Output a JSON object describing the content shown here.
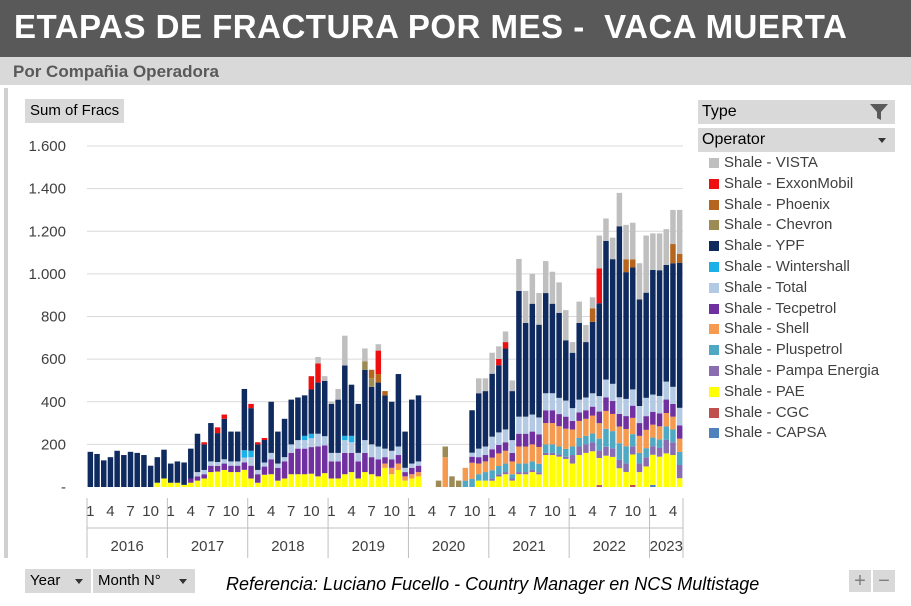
{
  "title": "ETAPAS DE FRACTURA POR MES -  VACA MUERTA",
  "subtitle": "Por Compañia Operadora",
  "value_button": "Sum of Fracs",
  "legend": {
    "filter_label": "Type",
    "header_label": "Operator",
    "filter_icon": "funnel-icon",
    "items": [
      {
        "name": "Shale - VISTA",
        "color": "#bfbfbf"
      },
      {
        "name": "Shale - ExxonMobil",
        "color": "#ee1010"
      },
      {
        "name": "Shale - Phoenix",
        "color": "#b5651d"
      },
      {
        "name": "Shale - Chevron",
        "color": "#9c8b55"
      },
      {
        "name": "Shale - YPF",
        "color": "#0f2a5f"
      },
      {
        "name": "Shale - Wintershall",
        "color": "#1bb0e8"
      },
      {
        "name": "Shale - Total",
        "color": "#b4c9e4"
      },
      {
        "name": "Shale - Tecpetrol",
        "color": "#7030a0"
      },
      {
        "name": "Shale - Shell",
        "color": "#f59a4f"
      },
      {
        "name": "Shale - Pluspetrol",
        "color": "#4fa9c4"
      },
      {
        "name": "Shale - Pampa Energia",
        "color": "#8a6cb1"
      },
      {
        "name": "Shale - PAE",
        "color": "#ffff00"
      },
      {
        "name": "Shale - CGC",
        "color": "#c0504d"
      },
      {
        "name": "Shale - CAPSA",
        "color": "#4f81bd"
      }
    ]
  },
  "axis_buttons": [
    {
      "label": "Year"
    },
    {
      "label": "Month N°"
    }
  ],
  "reference": "Referencia: Luciano Fucello - Country Manager en NCS Multistage",
  "buttons": {
    "plus": "+",
    "minus": "−"
  },
  "chart_data": {
    "type": "bar",
    "stacked": true,
    "ylim": [
      0,
      1600
    ],
    "yticks": [
      "-",
      "200",
      "400",
      "600",
      "800",
      "1.000",
      "1.200",
      "1.400",
      "1.600"
    ],
    "grid": true,
    "legend_position": "right",
    "years": [
      {
        "label": "2016",
        "months": 12
      },
      {
        "label": "2017",
        "months": 12
      },
      {
        "label": "2018",
        "months": 12
      },
      {
        "label": "2019",
        "months": 12
      },
      {
        "label": "2020",
        "months": 12
      },
      {
        "label": "2021",
        "months": 12
      },
      {
        "label": "2022",
        "months": 12
      },
      {
        "label": "2023",
        "months": 5
      }
    ],
    "month_ticks": [
      "1",
      "4",
      "7",
      "10"
    ],
    "series_order": [
      "Shale - CAPSA",
      "Shale - CGC",
      "Shale - PAE",
      "Shale - Pampa Energia",
      "Shale - Pluspetrol",
      "Shale - Shell",
      "Shale - Tecpetrol",
      "Shale - Total",
      "Shale - Wintershall",
      "Shale - YPF",
      "Shale - Chevron",
      "Shale - Phoenix",
      "Shale - ExxonMobil",
      "Shale - VISTA"
    ],
    "totals": [
      165,
      155,
      125,
      140,
      170,
      150,
      165,
      160,
      150,
      100,
      140,
      175,
      110,
      120,
      115,
      180,
      250,
      210,
      300,
      280,
      340,
      260,
      260,
      460,
      390,
      210,
      230,
      400,
      260,
      320,
      410,
      420,
      430,
      520,
      610,
      520,
      400,
      460,
      710,
      480,
      390,
      650,
      550,
      670,
      450,
      400,
      530,
      260,
      410,
      430,
      0,
      0,
      30,
      190,
      50,
      30,
      90,
      360,
      510,
      510,
      630,
      660,
      730,
      500,
      1070,
      920,
      1000,
      910,
      1060,
      1010,
      960,
      830,
      680,
      870,
      760,
      890,
      1180,
      1260,
      1170,
      1380,
      1230,
      1240,
      1050,
      1180,
      1190,
      1190,
      1210,
      1300,
      1300
    ],
    "shares": {
      "Shale - CAPSA": [
        0,
        0,
        0,
        0,
        0,
        0,
        0,
        0,
        0,
        0,
        0,
        0,
        0,
        0,
        0,
        0,
        0,
        0,
        0,
        0,
        0,
        0,
        0,
        0,
        0,
        0,
        0,
        0,
        0,
        0,
        0,
        0,
        0,
        0,
        0,
        0,
        0,
        0,
        0,
        0,
        0,
        0,
        0,
        0,
        0,
        0,
        0,
        0,
        0,
        0,
        0,
        0,
        0,
        0,
        0,
        0,
        0,
        0,
        0,
        0,
        0,
        0,
        0,
        0,
        0,
        0,
        0,
        0,
        0,
        0,
        0,
        0,
        0,
        0,
        0,
        0,
        0,
        0,
        0,
        0,
        0,
        0,
        0,
        0,
        10,
        0,
        0,
        0,
        0
      ],
      "Shale - CGC": [
        0,
        0,
        0,
        0,
        0,
        0,
        0,
        0,
        0,
        0,
        0,
        0,
        0,
        0,
        0,
        0,
        0,
        0,
        0,
        0,
        0,
        0,
        0,
        0,
        0,
        0,
        0,
        0,
        0,
        0,
        0,
        0,
        0,
        0,
        0,
        0,
        0,
        0,
        0,
        0,
        0,
        0,
        0,
        0,
        0,
        0,
        0,
        0,
        0,
        0,
        0,
        0,
        0,
        0,
        0,
        0,
        0,
        0,
        0,
        0,
        0,
        0,
        0,
        0,
        0,
        0,
        0,
        0,
        0,
        0,
        0,
        0,
        0,
        0,
        0,
        0,
        10,
        0,
        0,
        0,
        0,
        10,
        0,
        0,
        0,
        0,
        0,
        0,
        0
      ],
      "Shale - PAE": [
        0,
        0,
        0,
        0,
        0,
        0,
        0,
        0,
        0,
        0,
        20,
        40,
        20,
        20,
        10,
        20,
        30,
        40,
        70,
        80,
        80,
        70,
        70,
        70,
        40,
        20,
        60,
        60,
        30,
        40,
        60,
        60,
        60,
        60,
        50,
        60,
        40,
        40,
        60,
        70,
        40,
        70,
        60,
        50,
        90,
        60,
        80,
        30,
        40,
        50,
        0,
        0,
        0,
        0,
        0,
        0,
        0,
        0,
        30,
        30,
        30,
        50,
        60,
        30,
        60,
        60,
        70,
        60,
        150,
        150,
        150,
        140,
        110,
        150,
        160,
        160,
        140,
        140,
        140,
        90,
        70,
        150,
        70,
        90,
        140,
        140,
        150,
        150,
        40
      ],
      "Shale - Pampa Energia": [
        0,
        0,
        0,
        0,
        0,
        0,
        0,
        0,
        0,
        0,
        0,
        0,
        0,
        0,
        0,
        0,
        0,
        0,
        0,
        0,
        0,
        0,
        0,
        0,
        0,
        0,
        0,
        0,
        0,
        0,
        0,
        0,
        0,
        0,
        0,
        0,
        0,
        0,
        0,
        0,
        0,
        0,
        0,
        0,
        0,
        0,
        0,
        0,
        0,
        0,
        0,
        0,
        0,
        0,
        0,
        0,
        0,
        0,
        0,
        0,
        10,
        10,
        10,
        10,
        10,
        10,
        10,
        10,
        10,
        10,
        10,
        10,
        40,
        40,
        40,
        40,
        40,
        40,
        40,
        40,
        40,
        40,
        40,
        40,
        40,
        40,
        60,
        60,
        60
      ],
      "Shale - Pluspetrol": [
        0,
        0,
        0,
        0,
        0,
        0,
        0,
        0,
        0,
        0,
        0,
        0,
        0,
        0,
        0,
        0,
        0,
        0,
        0,
        0,
        0,
        0,
        0,
        0,
        0,
        0,
        0,
        0,
        0,
        0,
        0,
        0,
        0,
        0,
        0,
        0,
        0,
        0,
        0,
        0,
        0,
        0,
        0,
        0,
        0,
        0,
        0,
        0,
        0,
        0,
        0,
        0,
        0,
        0,
        0,
        0,
        30,
        40,
        30,
        40,
        40,
        40,
        40,
        20,
        40,
        40,
        40,
        40,
        40,
        40,
        40,
        40,
        40,
        40,
        40,
        40,
        60,
        80,
        80,
        80,
        80,
        60,
        50,
        40,
        40,
        40,
        60,
        60,
        60
      ],
      "Shale - Shell": [
        0,
        0,
        0,
        0,
        0,
        0,
        0,
        0,
        0,
        0,
        0,
        0,
        0,
        0,
        0,
        0,
        0,
        0,
        0,
        0,
        0,
        0,
        0,
        0,
        0,
        0,
        0,
        0,
        0,
        0,
        0,
        0,
        0,
        0,
        0,
        0,
        0,
        0,
        0,
        0,
        0,
        0,
        0,
        0,
        20,
        30,
        30,
        20,
        20,
        20,
        0,
        0,
        0,
        140,
        0,
        0,
        60,
        80,
        50,
        50,
        60,
        60,
        60,
        60,
        80,
        80,
        80,
        80,
        100,
        100,
        100,
        100,
        80,
        80,
        80,
        80,
        80,
        80,
        80,
        80,
        80,
        80,
        80,
        80,
        60,
        60,
        60,
        60,
        60
      ],
      "Shale - Tecpetrol": [
        0,
        0,
        0,
        0,
        0,
        0,
        0,
        0,
        0,
        0,
        0,
        0,
        0,
        0,
        0,
        20,
        20,
        20,
        30,
        30,
        30,
        30,
        30,
        30,
        60,
        40,
        40,
        70,
        60,
        80,
        100,
        120,
        120,
        120,
        140,
        120,
        80,
        80,
        100,
        90,
        80,
        90,
        80,
        80,
        30,
        40,
        40,
        20,
        30,
        30,
        0,
        0,
        0,
        0,
        0,
        0,
        0,
        30,
        30,
        30,
        40,
        40,
        40,
        40,
        60,
        60,
        60,
        60,
        60,
        60,
        60,
        60,
        40,
        40,
        40,
        40,
        60,
        60,
        60,
        60,
        60,
        60,
        60,
        60,
        60,
        60,
        60,
        60,
        60
      ],
      "Shale - Total": [
        0,
        0,
        0,
        0,
        0,
        0,
        0,
        0,
        0,
        0,
        0,
        0,
        0,
        0,
        0,
        0,
        20,
        20,
        20,
        20,
        20,
        20,
        20,
        20,
        40,
        20,
        20,
        30,
        20,
        20,
        40,
        40,
        40,
        40,
        60,
        40,
        40,
        40,
        60,
        50,
        40,
        60,
        60,
        60,
        40,
        40,
        40,
        20,
        20,
        20,
        0,
        0,
        0,
        0,
        0,
        0,
        0,
        20,
        40,
        40,
        60,
        60,
        60,
        60,
        80,
        80,
        80,
        80,
        80,
        80,
        80,
        80,
        60,
        60,
        60,
        60,
        80,
        80,
        80,
        80,
        80,
        80,
        80,
        80,
        80,
        80,
        80,
        80,
        80
      ],
      "Shale - Wintershall": [
        0,
        0,
        0,
        0,
        0,
        0,
        0,
        0,
        0,
        0,
        0,
        0,
        0,
        0,
        0,
        0,
        0,
        0,
        0,
        0,
        0,
        0,
        0,
        30,
        30,
        0,
        0,
        0,
        0,
        0,
        0,
        0,
        20,
        20,
        0,
        0,
        0,
        0,
        20,
        30,
        0,
        0,
        0,
        0,
        0,
        0,
        0,
        0,
        0,
        0,
        0,
        0,
        0,
        0,
        0,
        0,
        0,
        0,
        0,
        0,
        0,
        0,
        0,
        0,
        0,
        0,
        0,
        0,
        0,
        0,
        0,
        0,
        0,
        0,
        0,
        0,
        0,
        0,
        0,
        0,
        0,
        0,
        0,
        0,
        0,
        0,
        0,
        0,
        0
      ],
      "Shale - YPF": [
        165,
        155,
        125,
        140,
        170,
        150,
        165,
        160,
        150,
        100,
        120,
        135,
        90,
        100,
        105,
        140,
        180,
        120,
        180,
        150,
        190,
        140,
        140,
        250,
        200,
        120,
        110,
        240,
        150,
        180,
        210,
        200,
        190,
        200,
        240,
        240,
        230,
        250,
        330,
        240,
        230,
        330,
        270,
        300,
        250,
        230,
        340,
        170,
        300,
        310,
        0,
        0,
        0,
        0,
        0,
        0,
        0,
        210,
        260,
        260,
        300,
        320,
        380,
        230,
        590,
        440,
        520,
        440,
        470,
        420,
        420,
        300,
        260,
        360,
        260,
        320,
        480,
        620,
        580,
        820,
        590,
        600,
        500,
        460,
        580,
        580,
        520,
        580,
        660
      ],
      "Shale - Chevron": [
        0,
        0,
        0,
        0,
        0,
        0,
        0,
        0,
        0,
        0,
        0,
        0,
        0,
        0,
        0,
        0,
        0,
        0,
        0,
        0,
        0,
        0,
        0,
        0,
        0,
        0,
        0,
        0,
        0,
        0,
        0,
        0,
        0,
        0,
        0,
        0,
        0,
        0,
        0,
        0,
        0,
        40,
        40,
        0,
        0,
        0,
        0,
        0,
        0,
        0,
        0,
        0,
        30,
        50,
        50,
        30,
        0,
        0,
        0,
        0,
        0,
        0,
        0,
        0,
        0,
        0,
        0,
        0,
        0,
        0,
        0,
        0,
        0,
        0,
        0,
        0,
        0,
        0,
        0,
        0,
        0,
        0,
        0,
        0,
        0,
        0,
        0,
        0,
        0
      ],
      "Shale - Phoenix": [
        0,
        0,
        0,
        0,
        0,
        0,
        0,
        0,
        0,
        0,
        0,
        0,
        0,
        0,
        0,
        0,
        0,
        0,
        0,
        0,
        0,
        0,
        0,
        0,
        0,
        0,
        0,
        0,
        0,
        0,
        0,
        0,
        0,
        0,
        0,
        0,
        0,
        0,
        0,
        0,
        0,
        0,
        40,
        40,
        20,
        0,
        0,
        0,
        0,
        0,
        0,
        0,
        0,
        0,
        0,
        0,
        0,
        0,
        0,
        0,
        0,
        0,
        0,
        0,
        0,
        0,
        0,
        0,
        0,
        0,
        0,
        0,
        0,
        0,
        0,
        60,
        0,
        0,
        0,
        0,
        60,
        40,
        0,
        0,
        0,
        0,
        0,
        90,
        40
      ],
      "Shale - ExxonMobil": [
        0,
        0,
        0,
        0,
        0,
        0,
        0,
        0,
        0,
        0,
        0,
        0,
        0,
        0,
        0,
        0,
        0,
        10,
        0,
        30,
        20,
        0,
        0,
        0,
        20,
        10,
        10,
        0,
        0,
        0,
        0,
        0,
        0,
        60,
        90,
        0,
        0,
        0,
        0,
        0,
        0,
        0,
        0,
        110,
        0,
        0,
        0,
        0,
        0,
        0,
        0,
        0,
        0,
        0,
        0,
        0,
        0,
        0,
        0,
        0,
        0,
        30,
        30,
        0,
        0,
        0,
        0,
        0,
        0,
        0,
        0,
        0,
        0,
        0,
        0,
        0,
        180,
        0,
        0,
        0,
        0,
        0,
        0,
        0,
        0,
        0,
        0,
        0,
        0
      ],
      "Shale - VISTA": [
        0,
        0,
        0,
        0,
        0,
        0,
        0,
        0,
        0,
        0,
        0,
        0,
        0,
        0,
        0,
        0,
        0,
        0,
        0,
        0,
        0,
        0,
        0,
        0,
        0,
        0,
        0,
        0,
        0,
        0,
        0,
        0,
        0,
        0,
        30,
        20,
        10,
        50,
        140,
        0,
        0,
        60,
        0,
        30,
        0,
        0,
        0,
        0,
        0,
        0,
        0,
        0,
        0,
        0,
        0,
        0,
        0,
        0,
        70,
        60,
        100,
        60,
        50,
        50,
        150,
        150,
        140,
        150,
        150,
        150,
        150,
        150,
        50,
        100,
        80,
        50,
        170,
        100,
        100,
        160,
        160,
        180,
        170,
        250,
        170,
        170,
        160,
        160,
        200
      ]
    }
  }
}
